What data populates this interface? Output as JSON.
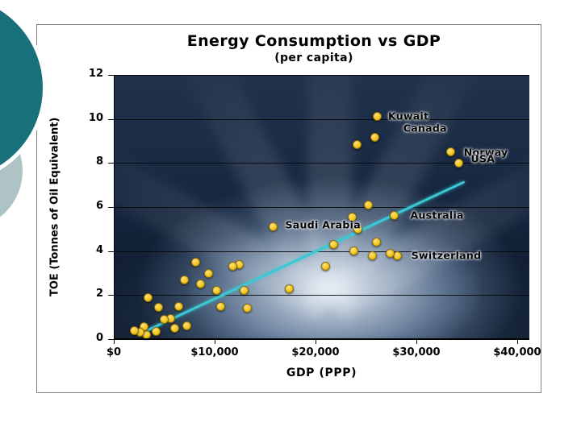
{
  "slide": {
    "decor": {
      "dark_circle_color": "#17707a",
      "light_circle_color": "#aec3c4"
    }
  },
  "chart_data": {
    "type": "scatter",
    "title": "Energy Consumption vs GDP",
    "subtitle": "(per capita)",
    "xlabel": "GDP (PPP)",
    "ylabel": "TOE (Tonnes of Oil Equivalent)",
    "xlim": [
      0,
      41200
    ],
    "ylim": [
      0,
      12
    ],
    "grid": "horizontal",
    "legend": "none",
    "marker_color": "#f5c81f",
    "marker_edge_color": "#8a6d12",
    "trend_color": "#3bc8d4",
    "x_ticks": [
      {
        "value": 0,
        "label": "$0"
      },
      {
        "value": 10000,
        "label": "$10,000"
      },
      {
        "value": 20000,
        "label": "$20,000"
      },
      {
        "value": 30000,
        "label": "$30,000"
      },
      {
        "value": 40000,
        "label": "$40,000"
      }
    ],
    "y_ticks": [
      0,
      2,
      4,
      6,
      8,
      10,
      12
    ],
    "trendline": {
      "x1": 2400,
      "y1": 0.25,
      "x2": 34800,
      "y2": 7.2
    },
    "points": [
      {
        "x": 26100,
        "y": 10.1,
        "label": "Kuwait"
      },
      {
        "x": 25900,
        "y": 9.15,
        "label": "Canada"
      },
      {
        "x": 24100,
        "y": 8.85
      },
      {
        "x": 33400,
        "y": 8.5,
        "label": "Norway"
      },
      {
        "x": 34200,
        "y": 8.0,
        "label": "USA"
      },
      {
        "x": 27800,
        "y": 5.6,
        "label": "Australia"
      },
      {
        "x": 25200,
        "y": 6.1
      },
      {
        "x": 23600,
        "y": 5.55
      },
      {
        "x": 15800,
        "y": 5.1,
        "label": "Saudi Arabia"
      },
      {
        "x": 28100,
        "y": 3.8,
        "label": "Switzerland"
      },
      {
        "x": 24200,
        "y": 5.0
      },
      {
        "x": 21800,
        "y": 4.3
      },
      {
        "x": 26000,
        "y": 4.4
      },
      {
        "x": 23800,
        "y": 4.0
      },
      {
        "x": 25600,
        "y": 3.8
      },
      {
        "x": 27400,
        "y": 3.9
      },
      {
        "x": 21000,
        "y": 3.3
      },
      {
        "x": 17400,
        "y": 2.3
      },
      {
        "x": 13200,
        "y": 1.4
      },
      {
        "x": 12900,
        "y": 2.2
      },
      {
        "x": 12400,
        "y": 3.4
      },
      {
        "x": 11800,
        "y": 3.3
      },
      {
        "x": 10600,
        "y": 1.5
      },
      {
        "x": 10200,
        "y": 2.2
      },
      {
        "x": 9400,
        "y": 3.0
      },
      {
        "x": 8600,
        "y": 2.5
      },
      {
        "x": 8100,
        "y": 3.5
      },
      {
        "x": 7200,
        "y": 0.6
      },
      {
        "x": 7000,
        "y": 2.7
      },
      {
        "x": 6400,
        "y": 1.5
      },
      {
        "x": 6000,
        "y": 0.5
      },
      {
        "x": 5600,
        "y": 0.95
      },
      {
        "x": 5000,
        "y": 0.9
      },
      {
        "x": 4400,
        "y": 1.45
      },
      {
        "x": 4200,
        "y": 0.35
      },
      {
        "x": 3400,
        "y": 1.9
      },
      {
        "x": 3200,
        "y": 0.2
      },
      {
        "x": 3000,
        "y": 0.55
      },
      {
        "x": 2600,
        "y": 0.3
      },
      {
        "x": 2000,
        "y": 0.4
      }
    ],
    "point_labels": [
      {
        "text": "Kuwait",
        "x": 27200,
        "y": 10.13
      },
      {
        "text": "Canada",
        "x": 28700,
        "y": 9.6
      },
      {
        "text": "Norway",
        "x": 34700,
        "y": 8.5
      },
      {
        "text": "USA",
        "x": 35400,
        "y": 8.2
      },
      {
        "text": "Australia",
        "x": 29400,
        "y": 5.65
      },
      {
        "text": "Saudi Arabia",
        "x": 17000,
        "y": 5.2
      },
      {
        "text": "Switzerland",
        "x": 29500,
        "y": 3.8
      }
    ]
  }
}
